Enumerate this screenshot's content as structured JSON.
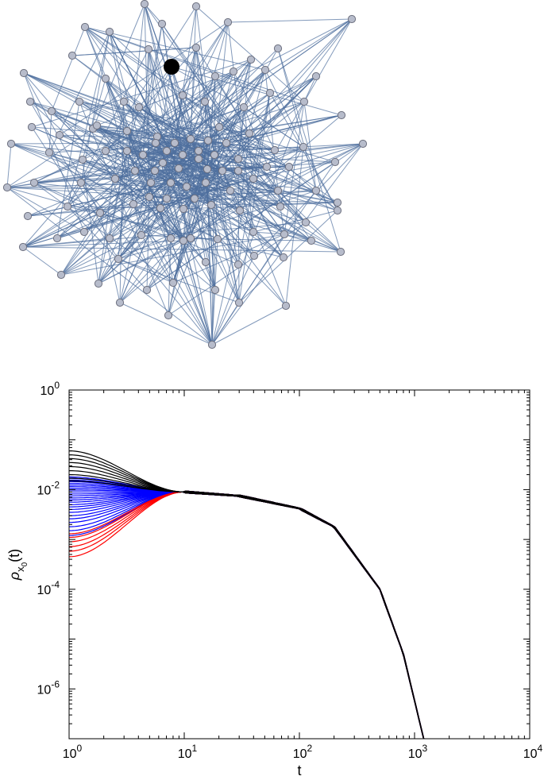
{
  "chart_data": [
    {
      "type": "network",
      "node_fill": "#b7bccb",
      "node_stroke": "#6e7180",
      "edge_color": "#4f6f9e",
      "highlight_node_color": "#000000",
      "node_count": 150,
      "highlighted_nodes": 1
    },
    {
      "type": "line",
      "xscale": "log",
      "yscale": "log",
      "xlim": [
        1,
        10000
      ],
      "ylim": [
        1e-07,
        1
      ],
      "xlabel": "t",
      "ylabel": "ρ",
      "ylabel_sub": "x",
      "ylabel_subsub": "0",
      "ylabel_tail": "(t)",
      "xticks": [
        {
          "value": 1,
          "base": "10",
          "exp": "0"
        },
        {
          "value": 10,
          "base": "10",
          "exp": "1"
        },
        {
          "value": 100,
          "base": "10",
          "exp": "2"
        },
        {
          "value": 1000,
          "base": "10",
          "exp": "3"
        },
        {
          "value": 10000,
          "base": "10",
          "exp": "4"
        }
      ],
      "yticks": [
        {
          "value": 1,
          "base": "10",
          "exp": "0"
        },
        {
          "value": 0.01,
          "base": "10",
          "exp": "-2"
        },
        {
          "value": 0.0001,
          "base": "10",
          "exp": "-4"
        },
        {
          "value": 1e-06,
          "base": "10",
          "exp": "-6"
        }
      ],
      "series_groups": [
        {
          "color": "#0000ff",
          "start_values": [
            0.0012,
            0.0015,
            0.0018,
            0.0022,
            0.0026,
            0.003,
            0.0035,
            0.004,
            0.0045,
            0.005,
            0.0056,
            0.0062,
            0.0068,
            0.0075,
            0.0082,
            0.009,
            0.0098,
            0.0106,
            0.0115,
            0.0124,
            0.0134,
            0.0145,
            0.0156,
            0.0168,
            0.018
          ]
        },
        {
          "color": "#ff0000",
          "start_values": [
            0.00045,
            0.00058,
            0.00072,
            0.0009,
            0.0011,
            0.0013
          ]
        },
        {
          "color": "#000000",
          "start_values": [
            0.06,
            0.05,
            0.042,
            0.035,
            0.029,
            0.024,
            0.02,
            0.017,
            0.015
          ]
        }
      ],
      "shared_shape": {
        "plateau_t": 10,
        "plateau_value": 0.009,
        "decay_points": [
          [
            10,
            0.009
          ],
          [
            30,
            0.0075
          ],
          [
            100,
            0.0042
          ],
          [
            200,
            0.0018
          ],
          [
            500,
            0.0001
          ],
          [
            800,
            5e-06
          ],
          [
            1200,
            1e-07
          ]
        ]
      }
    }
  ]
}
